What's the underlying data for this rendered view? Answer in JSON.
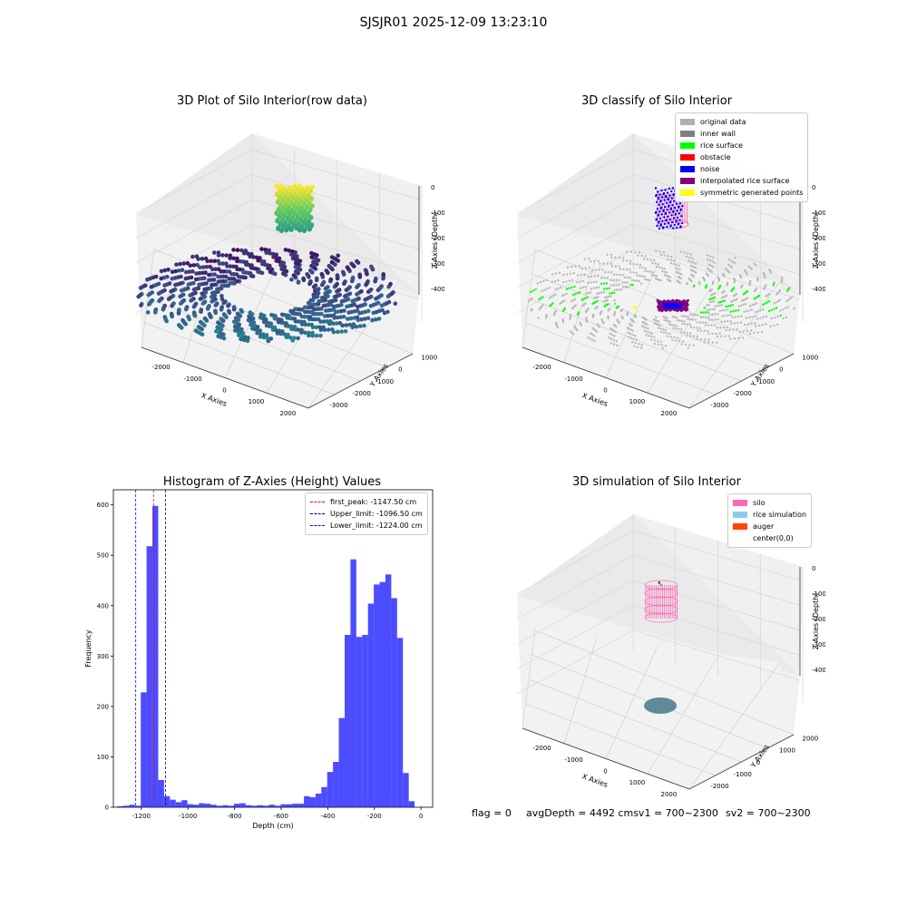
{
  "figure": {
    "title": "SJSJR01 2025-12-09 13:23:10"
  },
  "chart_data": [
    {
      "type": "scatter",
      "panel": "top-left",
      "title": "3D Plot of Silo Interior(row data)",
      "xlabel": "X Axies",
      "ylabel": "Y Axies",
      "zlabel": "Z Axies (Depth)",
      "x_ticks": [
        "-2000",
        "-1000",
        "0",
        "1000",
        "2000"
      ],
      "y_ticks": [
        "-3000",
        "-2000",
        "-1000",
        "0",
        "1000"
      ],
      "z_ticks": [
        "0",
        "-1000",
        "-2000",
        "-3000",
        "-4000"
      ],
      "colormap": "viridis",
      "groups": [
        {
          "label": "upper cluster",
          "x_range": [
            -500,
            0
          ],
          "z_range": [
            -1300,
            -200
          ]
        },
        {
          "label": "silo floor ring",
          "x_range": [
            -2200,
            2200
          ],
          "z_range": [
            -4300,
            -3800
          ]
        }
      ]
    },
    {
      "type": "scatter",
      "panel": "top-right",
      "title": "3D classify of Silo Interior",
      "xlabel": "X Axies",
      "ylabel": "Y Axies",
      "zlabel": "Z Axies (Depth)",
      "x_ticks": [
        "-2000",
        "-1000",
        "0",
        "1000",
        "2000"
      ],
      "y_ticks": [
        "-3000",
        "-2000",
        "-1000",
        "0",
        "1000"
      ],
      "z_ticks": [
        "0",
        "-1000",
        "-2000",
        "-3000",
        "-4000"
      ],
      "legend": [
        {
          "label": "original data",
          "color": "#b0b0b0"
        },
        {
          "label": "inner wall",
          "color": "#808080"
        },
        {
          "label": "rice surface",
          "color": "#00ff00"
        },
        {
          "label": "obstacle",
          "color": "#ff0000"
        },
        {
          "label": "noise",
          "color": "#0000ff"
        },
        {
          "label": "interpolated rice surface",
          "color": "#800080"
        },
        {
          "label": "symmetric generated points",
          "color": "#ffff00"
        }
      ],
      "legend_placement": "upper right"
    },
    {
      "type": "bar",
      "panel": "bottom-left",
      "title": "Histogram of Z-Axies (Height) Values",
      "xlabel": "Depth (cm)",
      "ylabel": "Frequency",
      "xlim": [
        -1320,
        50
      ],
      "ylim": [
        0,
        630
      ],
      "x_ticks": [
        -1200,
        -1000,
        -800,
        -600,
        -400,
        -200,
        0
      ],
      "y_ticks": [
        0,
        100,
        200,
        300,
        400,
        500,
        600
      ],
      "bar_color": "#0000ff",
      "bin_width": 25,
      "bins": [
        {
          "x": -1290,
          "v": 2
        },
        {
          "x": -1265,
          "v": 3
        },
        {
          "x": -1240,
          "v": 5
        },
        {
          "x": -1215,
          "v": 3
        },
        {
          "x": -1190,
          "v": 228
        },
        {
          "x": -1165,
          "v": 518
        },
        {
          "x": -1140,
          "v": 598
        },
        {
          "x": -1115,
          "v": 54
        },
        {
          "x": -1090,
          "v": 22
        },
        {
          "x": -1065,
          "v": 15
        },
        {
          "x": -1040,
          "v": 10
        },
        {
          "x": -1015,
          "v": 14
        },
        {
          "x": -990,
          "v": 6
        },
        {
          "x": -965,
          "v": 5
        },
        {
          "x": -940,
          "v": 8
        },
        {
          "x": -915,
          "v": 7
        },
        {
          "x": -890,
          "v": 5
        },
        {
          "x": -865,
          "v": 3
        },
        {
          "x": -840,
          "v": 4
        },
        {
          "x": -815,
          "v": 3
        },
        {
          "x": -790,
          "v": 7
        },
        {
          "x": -765,
          "v": 8
        },
        {
          "x": -740,
          "v": 4
        },
        {
          "x": -715,
          "v": 3
        },
        {
          "x": -690,
          "v": 4
        },
        {
          "x": -665,
          "v": 3
        },
        {
          "x": -640,
          "v": 5
        },
        {
          "x": -615,
          "v": 3
        },
        {
          "x": -590,
          "v": 6
        },
        {
          "x": -565,
          "v": 6
        },
        {
          "x": -540,
          "v": 7
        },
        {
          "x": -515,
          "v": 7
        },
        {
          "x": -490,
          "v": 22
        },
        {
          "x": -465,
          "v": 20
        },
        {
          "x": -440,
          "v": 27
        },
        {
          "x": -415,
          "v": 40
        },
        {
          "x": -390,
          "v": 70
        },
        {
          "x": -365,
          "v": 90
        },
        {
          "x": -340,
          "v": 177
        },
        {
          "x": -315,
          "v": 342
        },
        {
          "x": -290,
          "v": 492
        },
        {
          "x": -265,
          "v": 338
        },
        {
          "x": -240,
          "v": 342
        },
        {
          "x": -215,
          "v": 404
        },
        {
          "x": -190,
          "v": 442
        },
        {
          "x": -165,
          "v": 447
        },
        {
          "x": -140,
          "v": 462
        },
        {
          "x": -115,
          "v": 415
        },
        {
          "x": -90,
          "v": 336
        },
        {
          "x": -65,
          "v": 68
        },
        {
          "x": -40,
          "v": 12
        }
      ],
      "vlines": [
        {
          "label": "first_peak: -1147.50 cm",
          "x": -1147.5,
          "color": "#ff0000"
        },
        {
          "label": "Upper_limit: -1096.50 cm",
          "x": -1096.5,
          "color": "#000080"
        },
        {
          "label": "Lower_limit: -1224.00 cm",
          "x": -1224.0,
          "color": "#0000ff"
        }
      ],
      "legend_placement": "upper right"
    },
    {
      "type": "scatter",
      "panel": "bottom-right",
      "title": "3D simulation of Silo Interior",
      "xlabel": "X Axies",
      "ylabel": "Y Axies",
      "zlabel": "Z Axies (Depth)",
      "x_ticks": [
        "-2000",
        "-1000",
        "0",
        "1000",
        "2000"
      ],
      "y_ticks": [
        "-2000",
        "-1000",
        "0",
        "1000",
        "2000"
      ],
      "z_ticks": [
        "0",
        "-1000",
        "-2000",
        "-3000",
        "-4000"
      ],
      "legend": [
        {
          "label": "silo",
          "color": "#ff69b4"
        },
        {
          "label": "rice simulation",
          "color": "#87ceeb"
        },
        {
          "label": "auger",
          "color": "#ff4500"
        },
        {
          "label": "center(0,0)",
          "color": "#ffffff"
        }
      ],
      "legend_placement": "upper right"
    }
  ],
  "footer": {
    "flag": "flag = 0",
    "avg_depth": "avgDepth = 4492 cmsv1 = 700~2300",
    "sv2": "sv2 = 700~2300"
  }
}
